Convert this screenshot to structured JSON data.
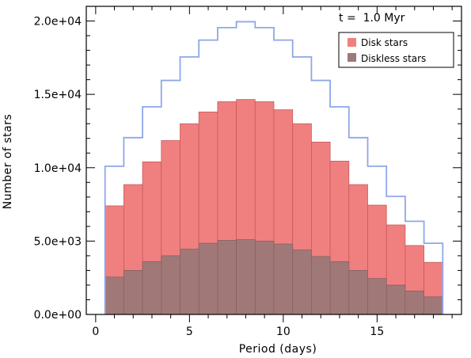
{
  "chart_data": {
    "type": "bar",
    "xlabel": "Period (days)",
    "ylabel": "Number of stars",
    "annotation": "t =  1.0 Myr",
    "xlim": [
      -0.5,
      19.5
    ],
    "ylim": [
      0,
      21000
    ],
    "x_ticks": [
      0,
      5,
      10,
      15
    ],
    "x_tick_labels": [
      "0",
      "5",
      "10",
      "15"
    ],
    "y_ticks": [
      0,
      5000,
      10000,
      15000,
      20000
    ],
    "y_tick_labels": [
      "0.0e+00",
      "5.0e+03",
      "1.0e+04",
      "1.5e+04",
      "2.0e+04"
    ],
    "bin_edges": [
      0.5,
      1.5,
      2.5,
      3.5,
      4.5,
      5.5,
      6.5,
      7.5,
      8.5,
      9.5,
      10.5,
      11.5,
      12.5,
      13.5,
      14.5,
      15.5,
      16.5,
      17.5,
      18.5
    ],
    "series": [
      {
        "name": "Disk stars",
        "style": "bar",
        "color": "#f08080",
        "edge_color": "#c85a5a",
        "values": [
          7400,
          8850,
          10400,
          11850,
          13000,
          13800,
          14500,
          14650,
          14500,
          13950,
          13000,
          11750,
          10450,
          8850,
          7450,
          6100,
          4700,
          3550
        ]
      },
      {
        "name": "Diskless stars",
        "style": "bar",
        "color": "#a17878",
        "edge_color": "#8a6060",
        "values": [
          2550,
          3000,
          3600,
          4000,
          4450,
          4850,
          5050,
          5100,
          5000,
          4800,
          4400,
          3950,
          3600,
          3000,
          2450,
          2000,
          1600,
          1200
        ]
      },
      {
        "name": "",
        "style": "step",
        "color": "#8ea7e8",
        "values": [
          10100,
          12050,
          14150,
          15950,
          17550,
          18700,
          19550,
          19950,
          19550,
          18700,
          17550,
          15950,
          14150,
          12050,
          10100,
          8050,
          6350,
          4850
        ]
      }
    ],
    "legend_position": "top-right",
    "grid": false
  }
}
